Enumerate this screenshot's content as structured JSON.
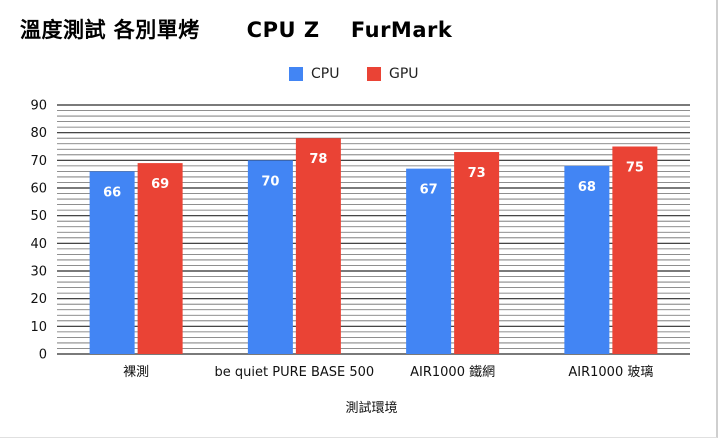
{
  "chart_data": {
    "type": "bar",
    "title": "溫度測試 各別單烤      CPU Z    FurMark",
    "xlabel": "測試環境",
    "ylabel": "",
    "ylim": [
      0,
      90
    ],
    "yticks": [
      0,
      10,
      20,
      30,
      40,
      50,
      60,
      70,
      80,
      90
    ],
    "legend_position": "top-center",
    "grid": true,
    "categories": [
      "裸測",
      "be quiet PURE BASE 500",
      "AIR1000 鐵網",
      "AIR1000  玻璃"
    ],
    "series": [
      {
        "name": "CPU",
        "color": "#4285f4",
        "values": [
          66,
          70,
          67,
          68
        ]
      },
      {
        "name": "GPU",
        "color": "#ea4335",
        "values": [
          69,
          78,
          73,
          75
        ]
      }
    ]
  }
}
